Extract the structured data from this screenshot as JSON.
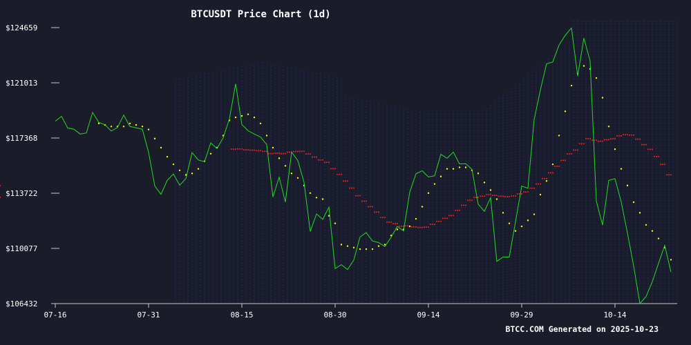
{
  "chart_data": {
    "type": "line",
    "title": "BTCUSDT Price Chart (1d)",
    "footer": "BTCC.COM Generated on 2025-10-23",
    "xlabel": "",
    "ylabel": "",
    "y_ticks": [
      "$106432",
      "$110077",
      "$113722",
      "$117368",
      "$121013",
      "$124659"
    ],
    "y_tick_values": [
      106432,
      110077,
      113722,
      117368,
      121013,
      124659
    ],
    "ylim": [
      106432,
      124659
    ],
    "x_ticks": [
      "07-16",
      "07-31",
      "08-15",
      "08-30",
      "09-14",
      "09-29",
      "10-14"
    ],
    "x_tick_days": [
      0,
      15,
      30,
      45,
      60,
      75,
      90
    ],
    "x_range_days": [
      0,
      100
    ],
    "colors": {
      "background": "#1a1d29",
      "price": "#22dd22",
      "trend_dots": "#ffff00",
      "ma_dots": "#ff2020",
      "band": "#1e2a6e",
      "axis": "#cccccc"
    },
    "series": [],
    "price_days": [
      0,
      1,
      2,
      3,
      4,
      5,
      6,
      7,
      8,
      9,
      10,
      11,
      12,
      13,
      14,
      15,
      16,
      17,
      18,
      19,
      20,
      21,
      22,
      23,
      24,
      25,
      26,
      27,
      28,
      29,
      30,
      31,
      32,
      33,
      34,
      35,
      36,
      37,
      38,
      39,
      40,
      41,
      42,
      43,
      44,
      45,
      46,
      47,
      48,
      49,
      50,
      51,
      52,
      53,
      54,
      55,
      56,
      57,
      58,
      59,
      60,
      61,
      62,
      63,
      64,
      65,
      66,
      67,
      68,
      69,
      70,
      71,
      72,
      73,
      74,
      75,
      76,
      77,
      78,
      79,
      80,
      81,
      82,
      83,
      84,
      85,
      86,
      87,
      88,
      89,
      90,
      91,
      92,
      93,
      94,
      95,
      96,
      97,
      98,
      99
    ],
    "price_values": [
      118480,
      118800,
      118030,
      117950,
      117630,
      117700,
      119060,
      118400,
      118240,
      117830,
      118060,
      118880,
      118130,
      118040,
      117950,
      116430,
      114200,
      113650,
      114570,
      114990,
      114250,
      114690,
      116400,
      115920,
      115800,
      117050,
      116670,
      117380,
      118630,
      120950,
      118260,
      117850,
      117630,
      117430,
      116930,
      113470,
      114780,
      113140,
      116440,
      115880,
      114440,
      111190,
      112350,
      112000,
      112800,
      108740,
      109000,
      108680,
      109310,
      110830,
      111120,
      110570,
      110460,
      110200,
      110810,
      111530,
      111230,
      113800,
      115010,
      115200,
      114800,
      114870,
      116290,
      116030,
      116440,
      115660,
      115670,
      115300,
      113000,
      112530,
      113420,
      109220,
      109510,
      109510,
      111830,
      114190,
      114050,
      118590,
      120530,
      122270,
      122390,
      123500,
      124150,
      124630,
      121460,
      123960,
      122460,
      113200,
      111620,
      114570,
      114680,
      113150,
      111100,
      108920,
      106430,
      106900,
      107880,
      109090,
      110280,
      108520,
      108050,
      108090
    ],
    "trend_days": [
      7,
      8,
      9,
      10,
      11,
      12,
      13,
      14,
      15,
      16,
      17,
      18,
      19,
      20,
      21,
      22,
      23,
      24,
      25,
      26,
      27,
      28,
      29,
      30,
      31,
      32,
      33,
      34,
      35,
      36,
      37,
      38,
      39,
      40,
      41,
      42,
      43,
      44,
      45,
      46,
      47,
      48,
      49,
      50,
      51,
      52,
      53,
      54,
      55,
      56,
      57,
      58,
      59,
      60,
      61,
      62,
      63,
      64,
      65,
      66,
      67,
      68,
      69,
      70,
      71,
      72,
      73,
      74,
      75,
      76,
      77,
      78,
      79,
      80,
      81,
      82,
      83,
      84,
      85,
      86,
      87,
      88,
      89,
      90,
      91,
      92,
      93,
      94,
      95,
      96,
      97,
      98,
      99
    ],
    "trend_values": [
      118330,
      118230,
      118130,
      118130,
      118130,
      118330,
      118230,
      118130,
      117930,
      117330,
      116730,
      116130,
      115630,
      115230,
      114930,
      115030,
      115330,
      115830,
      116330,
      116730,
      117530,
      118530,
      118730,
      118830,
      118930,
      118730,
      118330,
      117530,
      116730,
      116030,
      115530,
      115030,
      114730,
      114230,
      113730,
      113430,
      113330,
      112230,
      111730,
      110330,
      110230,
      110130,
      110030,
      110030,
      110030,
      110230,
      110330,
      110930,
      111330,
      111330,
      111530,
      112030,
      112830,
      113730,
      114330,
      114830,
      115330,
      115330,
      115430,
      115430,
      115230,
      115030,
      114430,
      113930,
      113330,
      112430,
      111730,
      111230,
      111530,
      111930,
      112330,
      113630,
      114530,
      115630,
      117530,
      119130,
      120830,
      121630,
      122130,
      121930,
      121330,
      120030,
      118130,
      116630,
      115330,
      114230,
      113130,
      112430,
      111630,
      111230,
      110730,
      110130,
      109330,
      108630,
      108330
    ]
  }
}
